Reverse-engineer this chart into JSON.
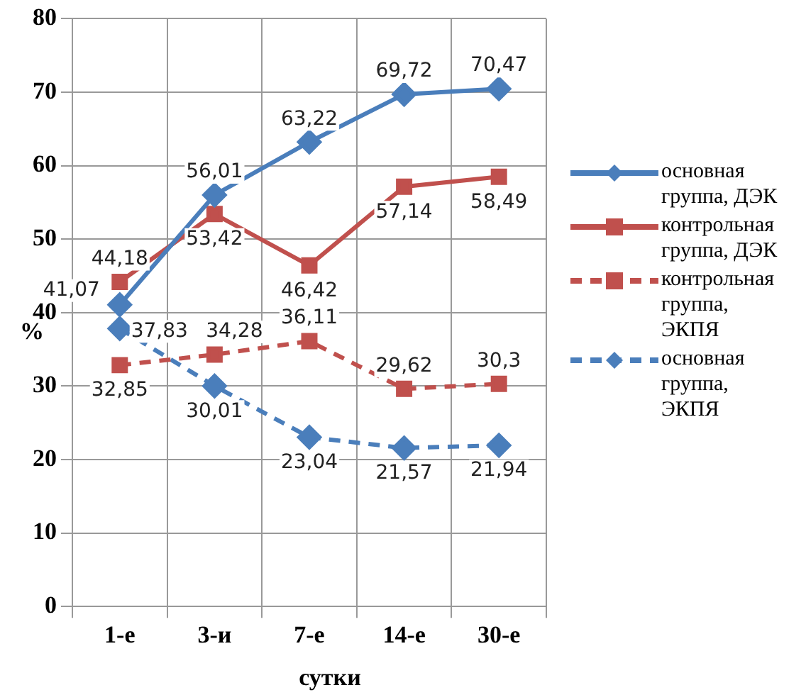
{
  "chart_data": {
    "type": "line",
    "xlabel": "сутки",
    "ylabel": "%",
    "categories": [
      "1-е",
      "3-и",
      "7-е",
      "14-е",
      "30-е"
    ],
    "series": [
      {
        "name": "основная группа, ДЭК",
        "color": "#4a7ebb",
        "values": [
          41.07,
          56.01,
          63.22,
          69.72,
          70.47
        ],
        "value_labels": [
          "41,07",
          "56,01",
          "63,22",
          "69,72",
          "70,47"
        ],
        "marker": "diamond",
        "line_style": "solid"
      },
      {
        "name": "контрольная группа, ДЭК",
        "color": "#c0504d",
        "values": [
          44.18,
          53.42,
          46.42,
          57.14,
          58.49
        ],
        "value_labels": [
          "44,18",
          "53,42",
          "46,42",
          "57,14",
          "58,49"
        ],
        "marker": "square",
        "line_style": "solid"
      },
      {
        "name": "контрольная группа, ЭКПЯ",
        "color": "#c0504d",
        "values": [
          32.85,
          34.28,
          36.11,
          29.62,
          30.3
        ],
        "value_labels": [
          "32,85",
          "34,28",
          "36,11",
          "29,62",
          "30,3"
        ],
        "marker": "square",
        "line_style": "dashed"
      },
      {
        "name": "основная группа, ЭКПЯ",
        "color": "#4a7ebb",
        "values": [
          37.83,
          30.01,
          23.04,
          21.57,
          21.94
        ],
        "value_labels": [
          "37,83",
          "30,01",
          "23,04",
          "21,57",
          "21,94"
        ],
        "marker": "diamond",
        "line_style": "dashed"
      }
    ],
    "ylim": [
      0,
      80
    ],
    "yticks": [
      0,
      10,
      20,
      30,
      40,
      50,
      60,
      70,
      80
    ],
    "grid": true,
    "legend": "right"
  }
}
